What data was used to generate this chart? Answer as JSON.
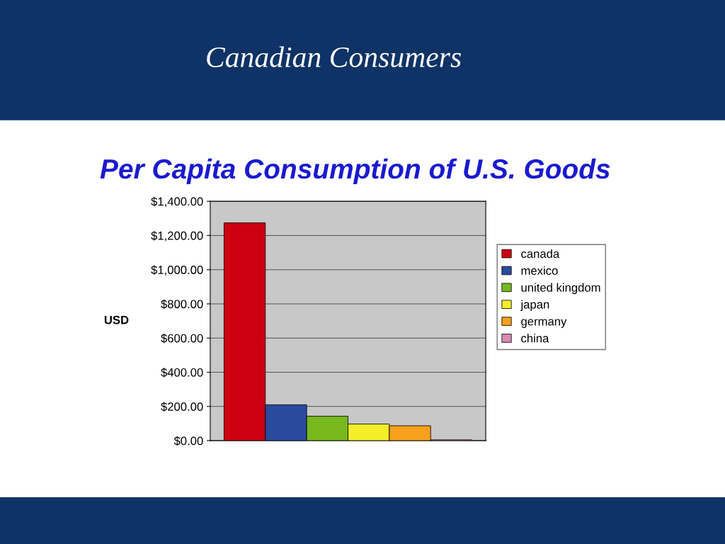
{
  "chart_data": {
    "type": "bar",
    "title": "Canadian Consumers",
    "subtitle": "Per Capita Consumption of U.S. Goods",
    "ylabel": "USD",
    "categories": [
      null
    ],
    "series": [
      {
        "name": "canada",
        "color": "#cc0010",
        "values": [
          1274
        ]
      },
      {
        "name": "mexico",
        "color": "#2a4a9e",
        "values": [
          210
        ]
      },
      {
        "name": "united kingdom",
        "color": "#76b81e",
        "values": [
          143
        ]
      },
      {
        "name": "japan",
        "color": "#f2ee2a",
        "values": [
          97
        ]
      },
      {
        "name": "germany",
        "color": "#f7a01c",
        "values": [
          87
        ]
      },
      {
        "name": "china",
        "color": "#d88cb4",
        "values": [
          5
        ]
      }
    ],
    "ylim": [
      0,
      1400
    ],
    "yticks": [
      {
        "value": 0,
        "label": "$0.00"
      },
      {
        "value": 200,
        "label": "$200.00"
      },
      {
        "value": 400,
        "label": "$400.00"
      },
      {
        "value": 600,
        "label": "$600.00"
      },
      {
        "value": 800,
        "label": "$800.00"
      },
      {
        "value": 1000,
        "label": "$1,000.00"
      },
      {
        "value": 1200,
        "label": "$1,200.00"
      },
      {
        "value": 1400,
        "label": "$1,400.00"
      }
    ],
    "grid": "y",
    "legend": "right"
  }
}
